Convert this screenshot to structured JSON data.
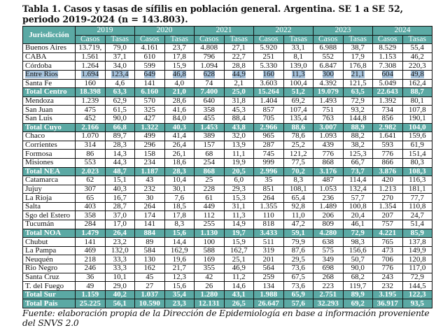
{
  "title": "Tabla 1. Casos y tasas de sífilis en población general. Argentina. SE 1 a SE 52, periodo 2019-2024 (n = 143.803).",
  "header": {
    "jurisdiccion": "Jurisdicción",
    "years": [
      "2019",
      "2020",
      "2021",
      "2022",
      "2023",
      "2024"
    ],
    "casos": "Casos",
    "tasas": "Tasas"
  },
  "colors": {
    "header_bg": "#5ba9a4",
    "highlight": "#a8c4dd"
  },
  "rows": [
    {
      "name": "Buenos Aires",
      "v": [
        "13.719,",
        "79,0",
        "4.161",
        "23,7",
        "4.808",
        "27,1",
        "5.920",
        "33,1",
        "6.988",
        "38,7",
        "8.529",
        "55,4"
      ]
    },
    {
      "name": "CABA",
      "v": [
        "1.561",
        "37,1",
        "610",
        "17,8",
        "796",
        "22,7",
        "251",
        "8,1",
        "552",
        "17,9",
        "1.153",
        "46,2"
      ]
    },
    {
      "name": "Córdoba",
      "v": [
        "1.264",
        "34,0",
        "599",
        "15,9",
        "1.094",
        "28,8",
        "5.330",
        "139,0",
        "6.847",
        "176,8",
        "7.308",
        "220,3"
      ]
    },
    {
      "name": "Entre Rios",
      "highlight": true,
      "v": [
        "1.694",
        "123,4",
        "649",
        "46,8",
        "628",
        "44,9",
        "160",
        "11,3",
        "300",
        "21,1",
        "604",
        "49,8"
      ]
    },
    {
      "name": "Santa Fe",
      "v": [
        "160",
        "4,6",
        "141",
        "4,0",
        "74",
        "2,1",
        "3.603",
        "100,4",
        "4.392",
        "121,5",
        "5.049",
        "162,4"
      ]
    },
    {
      "name": "Total Centro",
      "total": true,
      "v": [
        "18.398",
        "63,3",
        "6.160",
        "21,0",
        "7.400",
        "25,0",
        "15.264",
        "51,2",
        "19.079",
        "63,5",
        "22.643",
        "88,7"
      ]
    },
    {
      "name": "Mendoza",
      "v": [
        "1.239",
        "62,9",
        "570",
        "28,6",
        "640",
        "31,8",
        "1.404",
        "69,2",
        "1.493",
        "72,9",
        "1.392",
        "80,1"
      ]
    },
    {
      "name": "San Juan",
      "v": [
        "475",
        "61,5",
        "325",
        "41,6",
        "358",
        "45,3",
        "857",
        "107,4",
        "751",
        "93,2",
        "734",
        "107,8"
      ]
    },
    {
      "name": "San Luis",
      "v": [
        "452",
        "90,0",
        "427",
        "84,0",
        "455",
        "88,4",
        "705",
        "135,4",
        "763",
        "144,8",
        "856",
        "190,1"
      ]
    },
    {
      "name": "Total Cuyo",
      "total": true,
      "v": [
        "2.166",
        "66,8",
        "1.322",
        "40,3",
        "1.453",
        "43,8",
        "2.966",
        "88,6",
        "3.007",
        "88,9",
        "2.982",
        "104,0"
      ]
    },
    {
      "name": "Chaco",
      "v": [
        "1.070",
        "89,7",
        "499",
        "41,4",
        "389",
        "32,0",
        "965",
        "78,6",
        "1.093",
        "88,2",
        "1.641",
        "159,6"
      ]
    },
    {
      "name": "Corrientes",
      "v": [
        "314",
        "28,3",
        "296",
        "26,4",
        "157",
        "13,9",
        "287",
        "25,2",
        "439",
        "38,2",
        "593",
        "61,9"
      ]
    },
    {
      "name": "Formosa",
      "v": [
        "86",
        "14,3",
        "158",
        "26,1",
        "68",
        "11,1",
        "745",
        "121,2",
        "776",
        "125,3",
        "776",
        "151,4"
      ]
    },
    {
      "name": "Misiones",
      "v": [
        "553",
        "44,3",
        "234",
        "18,6",
        "254",
        "19,9",
        "999",
        "77,5",
        "868",
        "66,7",
        "866",
        "80,3"
      ]
    },
    {
      "name": "Total NEA",
      "total": true,
      "v": [
        "2.023",
        "48,7",
        "1.187",
        "28,3",
        "868",
        "20,5",
        "2.996",
        "70,2",
        "3.176",
        "73,7",
        "3.876",
        "108,3"
      ]
    },
    {
      "name": "Catamarca",
      "v": [
        "62",
        "15,1",
        "43",
        "10,4",
        "25",
        "6,0",
        "35",
        "8,3",
        "487",
        "114,4",
        "420",
        "116,3"
      ]
    },
    {
      "name": "Jujuy",
      "v": [
        "307",
        "40,3",
        "232",
        "30,1",
        "228",
        "29,3",
        "851",
        "108,1",
        "1.053",
        "132,4",
        "1.213",
        "181,1"
      ]
    },
    {
      "name": "La Rioja",
      "v": [
        "65",
        "16,7",
        "30",
        "7,6",
        "61",
        "15,3",
        "264",
        "65,4",
        "236",
        "57,7",
        "270",
        "77,7"
      ]
    },
    {
      "name": "Salta",
      "v": [
        "403",
        "28,7",
        "264",
        "18,5",
        "449",
        "31,1",
        "1.355",
        "92,8",
        "1.489",
        "100,8",
        "1.354",
        "110,8"
      ]
    },
    {
      "name": "Sgo del Estero",
      "v": [
        "358",
        "37,0",
        "174",
        "17,8",
        "112",
        "11,3",
        "110",
        "11,0",
        "206",
        "20,4",
        "207",
        "24,7"
      ]
    },
    {
      "name": "Tucumán",
      "v": [
        "284",
        "17,0",
        "141",
        "8,3",
        "255",
        "14,9",
        "818",
        "47,2",
        "809",
        "46,1",
        "757",
        "51,4"
      ]
    },
    {
      "name": "Total NOA",
      "total": true,
      "v": [
        "1.479",
        "26,4",
        "884",
        "15,6",
        "1.130",
        "19,7",
        "3.433",
        "59,1",
        "4.280",
        "72,9",
        "4.221",
        "85,9"
      ]
    },
    {
      "name": "Chubut",
      "v": [
        "141",
        "23,2",
        "89",
        "14,4",
        "100",
        "15,9",
        "511",
        "79,9",
        "638",
        "98,3",
        "765",
        "137,8"
      ]
    },
    {
      "name": "La Pampa",
      "v": [
        "469",
        "132,0",
        "584",
        "162,9",
        "588",
        "162,7",
        "319",
        "87,6",
        "575",
        "156,6",
        "473",
        "149,9"
      ]
    },
    {
      "name": "Neuquén",
      "v": [
        "218",
        "33,3",
        "130",
        "19,6",
        "169",
        "25,1",
        "201",
        "29,5",
        "349",
        "50,7",
        "706",
        "120,8"
      ]
    },
    {
      "name": "Rio Negro",
      "v": [
        "246",
        "33,3",
        "162",
        "21,7",
        "355",
        "46,9",
        "564",
        "73,6",
        "698",
        "90,0",
        "776",
        "117,0"
      ]
    },
    {
      "name": "Santa Cruz",
      "v": [
        "36",
        "10,1",
        "45",
        "12,3",
        "42",
        "11,2",
        "259",
        "67,5",
        "268",
        "68,2",
        "243",
        "72,9"
      ]
    },
    {
      "name": "T. del Fuego",
      "v": [
        "49",
        "29,0",
        "27",
        "15,6",
        "26",
        "14,6",
        "134",
        "73,6",
        "223",
        "119,7",
        "232",
        "144,5"
      ]
    },
    {
      "name": "Total Sur",
      "total": true,
      "v": [
        "1.159",
        "40,2",
        "1.037",
        "35,4",
        "1.280",
        "43,1",
        "1.988",
        "65,9",
        "2.751",
        "89,9",
        "3.195",
        "122,3"
      ]
    },
    {
      "name": "Total Pais",
      "total": true,
      "v": [
        "25.225",
        "56,1",
        "10.590",
        "23,3",
        "12.131",
        "26,5",
        "26.647",
        "57,6",
        "32.293",
        "69,2",
        "36.917",
        "93,5"
      ]
    }
  ],
  "footnote": "Fuente: elaboración propia de la Dirección de Epidemiología en base a información proveniente del SNVS 2.0"
}
